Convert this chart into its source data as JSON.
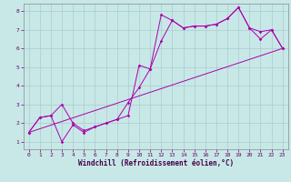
{
  "title": "",
  "xlabel": "Windchill (Refroidissement éolien,°C)",
  "bg_color": "#c8e8e8",
  "grid_color": "#aacccc",
  "line_color": "#aa00aa",
  "xmin": -0.5,
  "xmax": 23.5,
  "ymin": 0.6,
  "ymax": 8.4,
  "yticks": [
    1,
    2,
    3,
    4,
    5,
    6,
    7,
    8
  ],
  "xticks": [
    0,
    1,
    2,
    3,
    4,
    5,
    6,
    7,
    8,
    9,
    10,
    11,
    12,
    13,
    14,
    15,
    16,
    17,
    18,
    19,
    20,
    21,
    22,
    23
  ],
  "line1_x": [
    0,
    1,
    2,
    3,
    4,
    5,
    6,
    7,
    8,
    9,
    10,
    11,
    12,
    13,
    14,
    15,
    16,
    17,
    18,
    19,
    20,
    21,
    22,
    23
  ],
  "line1_y": [
    1.5,
    2.3,
    2.4,
    3.0,
    2.0,
    1.6,
    1.8,
    2.0,
    2.2,
    3.1,
    3.9,
    4.9,
    7.8,
    7.5,
    7.1,
    7.2,
    7.2,
    7.3,
    7.6,
    8.2,
    7.1,
    6.9,
    7.0,
    6.0
  ],
  "line2_x": [
    0,
    1,
    2,
    3,
    4,
    5,
    6,
    7,
    8,
    9,
    10,
    11,
    12,
    13,
    14,
    15,
    16,
    17,
    18,
    19,
    20,
    21,
    22,
    23
  ],
  "line2_y": [
    1.5,
    2.3,
    2.4,
    1.0,
    1.9,
    1.5,
    1.8,
    2.0,
    2.2,
    2.4,
    5.1,
    4.9,
    6.4,
    7.5,
    7.1,
    7.2,
    7.2,
    7.3,
    7.6,
    8.2,
    7.1,
    6.5,
    7.0,
    6.0
  ],
  "line3_x": [
    0,
    23
  ],
  "line3_y": [
    1.5,
    6.0
  ]
}
